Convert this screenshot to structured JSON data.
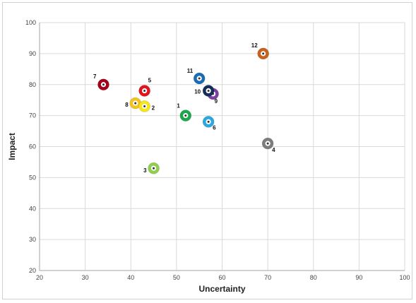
{
  "chart_data": {
    "type": "scatter",
    "title": "",
    "xlabel": "Uncertainty",
    "ylabel": "Impact",
    "xlim": [
      20,
      100
    ],
    "ylim": [
      20,
      100
    ],
    "xticks": [
      20,
      30,
      40,
      50,
      60,
      70,
      80,
      90,
      100
    ],
    "yticks": [
      20,
      30,
      40,
      50,
      60,
      70,
      80,
      90,
      100
    ],
    "grid": true,
    "legend": "none",
    "points": [
      {
        "label": "1",
        "x": 52,
        "y": 70,
        "color": "#1aa84a"
      },
      {
        "label": "2",
        "x": 43,
        "y": 73,
        "color": "#f5e61b"
      },
      {
        "label": "3",
        "x": 45,
        "y": 53,
        "color": "#8fce4f"
      },
      {
        "label": "4",
        "x": 70,
        "y": 61,
        "color": "#7c7c7c"
      },
      {
        "label": "5",
        "x": 43,
        "y": 78,
        "color": "#e3141d"
      },
      {
        "label": "6",
        "x": 57,
        "y": 68,
        "color": "#29a9e0"
      },
      {
        "label": "7",
        "x": 34,
        "y": 80,
        "color": "#a4001a"
      },
      {
        "label": "8",
        "x": 41,
        "y": 74,
        "color": "#f6c21c"
      },
      {
        "label": "9",
        "x": 58,
        "y": 77,
        "color": "#7d3fa6"
      },
      {
        "label": "10",
        "x": 57,
        "y": 78,
        "color": "#142e5a"
      },
      {
        "label": "11",
        "x": 55,
        "y": 82,
        "color": "#1b6bb4"
      },
      {
        "label": "12",
        "x": 69,
        "y": 90,
        "color": "#c8601e"
      }
    ]
  }
}
